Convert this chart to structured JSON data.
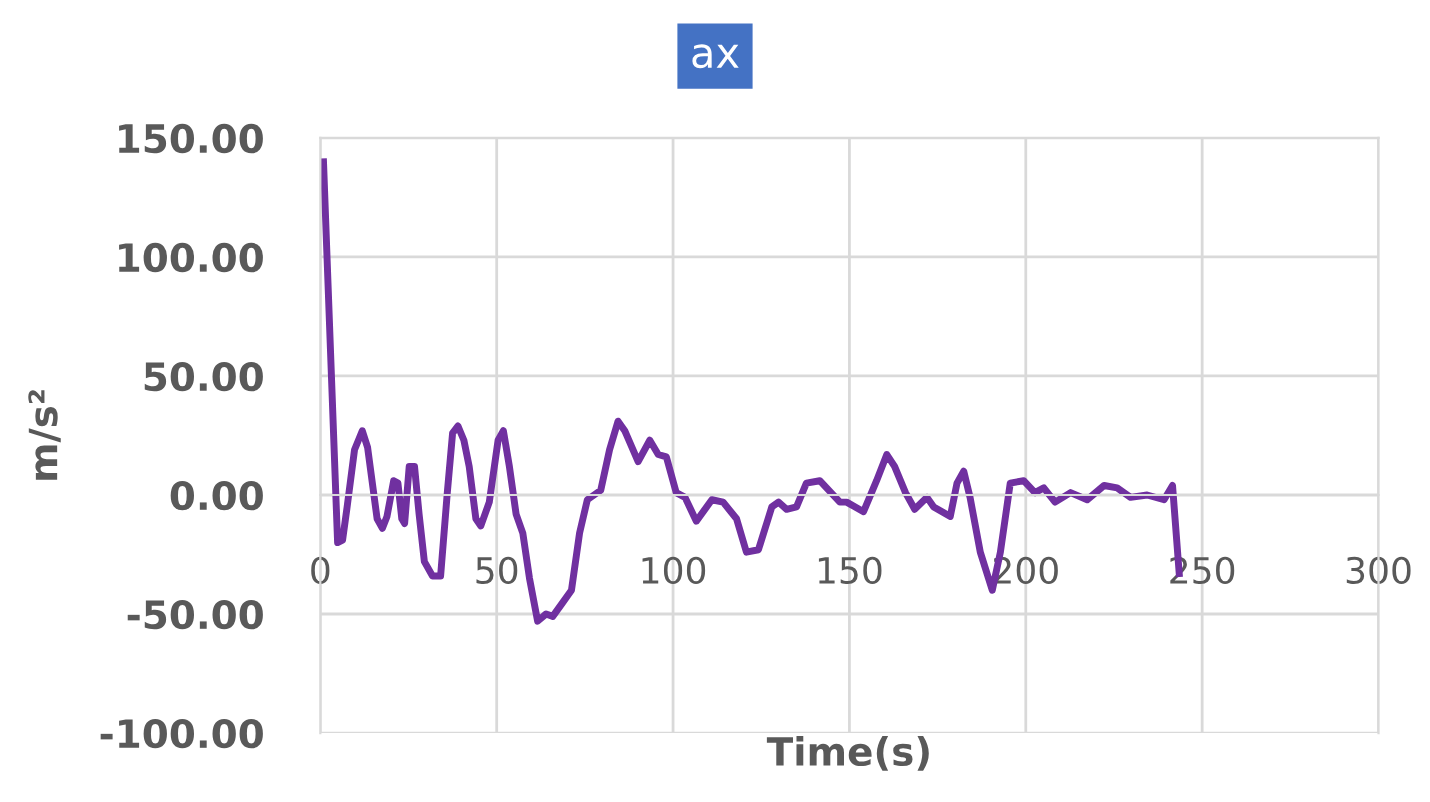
{
  "chart_data": {
    "type": "line",
    "title": "ax",
    "xlabel": "Time(s)",
    "ylabel": "m/s²",
    "xlim": [
      0,
      300
    ],
    "xticks": [
      0,
      50,
      100,
      150,
      200,
      250,
      300
    ],
    "ylim": [
      -100,
      150
    ],
    "yticks": [
      {
        "value": -100,
        "label": "-100.00"
      },
      {
        "value": -50,
        "label": "-50.00"
      },
      {
        "value": 0,
        "label": "0.00"
      },
      {
        "value": 50,
        "label": "50.00"
      },
      {
        "value": 100,
        "label": "100.00"
      },
      {
        "value": 150,
        "label": "150.00"
      }
    ],
    "grid": true,
    "marker": "none",
    "line_style": "solid",
    "legend": false,
    "series": [
      {
        "color": "#7030a0",
        "x": [
          0.9,
          4.9,
          6.3,
          7.6,
          9.7,
          11.9,
          13.4,
          16.1,
          17.6,
          18.9,
          20.8,
          22,
          23.1,
          23.9,
          25.2,
          26.7,
          28,
          29.5,
          31.8,
          34.1,
          36,
          37.5,
          39,
          40.7,
          42.2,
          44.1,
          45.5,
          47.9,
          50.4,
          51.9,
          53.6,
          55.5,
          57.4,
          59.3,
          61.6,
          64,
          65.9,
          68.8,
          71.2,
          73.5,
          75.7,
          79.5,
          82,
          84.4,
          86.3,
          90.1,
          93.4,
          95.8,
          98.1,
          100.9,
          103.4,
          106.6,
          111,
          114.2,
          118,
          120.8,
          124.2,
          128,
          129.9,
          132.2,
          135,
          137.8,
          141.6,
          147.3,
          149.2,
          154,
          157.7,
          160.6,
          162.8,
          165.9,
          168.5,
          172,
          173.9,
          178.6,
          180.5,
          182.4,
          184.2,
          187.1,
          190.5,
          192.8,
          195.6,
          199.4,
          202.6,
          205.1,
          208.3,
          212.7,
          217.4,
          222.2,
          225.9,
          229.7,
          234.4,
          239.2,
          241.6,
          243.5
        ],
        "values": [
          140,
          -20,
          -19,
          -5,
          19,
          27,
          20,
          -10,
          -14,
          -9,
          6,
          5,
          -10,
          -12,
          12,
          12,
          -8,
          -28,
          -34,
          -34,
          1,
          26,
          29,
          23,
          12,
          -10,
          -13,
          -3,
          23,
          27,
          12,
          -8,
          -16,
          -35,
          -53,
          -50,
          -51,
          -45,
          -40,
          -16,
          -2,
          2,
          19,
          31,
          27,
          14,
          23,
          17,
          16,
          1,
          -1,
          -11,
          -2,
          -3,
          -10,
          -24,
          -23,
          -5,
          -3,
          -6,
          -5,
          5,
          6,
          -3,
          -3,
          -7,
          6,
          17,
          12,
          1,
          -6,
          -1,
          -5,
          -9,
          5,
          10,
          -1,
          -24,
          -40,
          -24,
          5,
          6,
          1,
          3,
          -3,
          1,
          -2,
          4,
          3,
          -1,
          0,
          -2,
          4,
          -33
        ]
      }
    ]
  }
}
